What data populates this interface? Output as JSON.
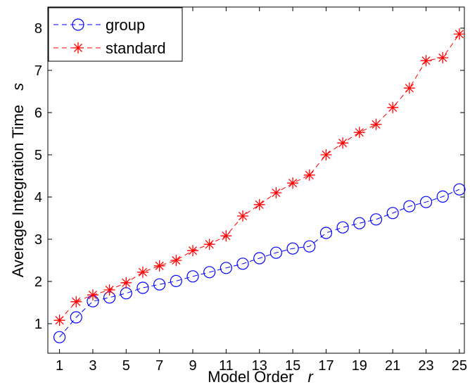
{
  "chart_data": {
    "type": "line",
    "xlabel": "Model Order",
    "xlabel_var": "r",
    "ylabel": "Average Integration Time",
    "ylabel_var": "s",
    "xlim": [
      0.3,
      25.3
    ],
    "ylim": [
      0.3,
      8.5
    ],
    "x_ticks": [
      1,
      3,
      5,
      7,
      9,
      11,
      13,
      15,
      17,
      19,
      21,
      23,
      25
    ],
    "y_ticks": [
      1,
      2,
      3,
      4,
      5,
      6,
      7,
      8
    ],
    "legend_position": "top-left",
    "grid": false,
    "x": [
      1,
      2,
      3,
      4,
      5,
      6,
      7,
      8,
      9,
      10,
      11,
      12,
      13,
      14,
      15,
      16,
      17,
      18,
      19,
      20,
      21,
      22,
      23,
      24,
      25
    ],
    "series": [
      {
        "name": "group",
        "color": "#0000ff",
        "marker": "circle",
        "line_style": "dashed",
        "values": [
          0.68,
          1.15,
          1.53,
          1.62,
          1.72,
          1.85,
          1.93,
          2.01,
          2.12,
          2.22,
          2.32,
          2.42,
          2.55,
          2.68,
          2.78,
          2.83,
          3.15,
          3.28,
          3.38,
          3.47,
          3.62,
          3.78,
          3.88,
          4.01,
          4.18
        ]
      },
      {
        "name": "standard",
        "color": "#ff0000",
        "marker": "asterisk",
        "line_style": "dashed",
        "values": [
          1.08,
          1.52,
          1.68,
          1.8,
          1.97,
          2.22,
          2.37,
          2.5,
          2.73,
          2.88,
          3.08,
          3.55,
          3.82,
          4.1,
          4.33,
          4.52,
          5.0,
          5.28,
          5.53,
          5.72,
          6.12,
          6.58,
          7.23,
          7.3,
          7.86
        ]
      }
    ]
  }
}
